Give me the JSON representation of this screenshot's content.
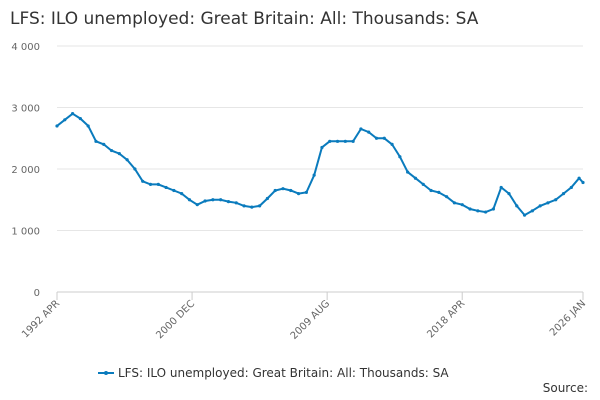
{
  "chart_data": {
    "type": "line",
    "title": "LFS: ILO unemployed: Great Britain: All: Thousands: SA",
    "x": [
      "1992 APR",
      "1992 OCT",
      "1993 APR",
      "1993 OCT",
      "1994 APR",
      "1994 OCT",
      "1995 APR",
      "1995 OCT",
      "1996 APR",
      "1996 OCT",
      "1997 APR",
      "1997 OCT",
      "1998 APR",
      "1998 OCT",
      "1999 APR",
      "1999 OCT",
      "2000 APR",
      "2000 OCT",
      "2001 APR",
      "2001 OCT",
      "2002 APR",
      "2002 OCT",
      "2003 APR",
      "2003 OCT",
      "2004 APR",
      "2004 OCT",
      "2005 APR",
      "2005 OCT",
      "2006 APR",
      "2006 OCT",
      "2007 APR",
      "2007 OCT",
      "2008 APR",
      "2008 OCT",
      "2009 APR",
      "2009 OCT",
      "2010 APR",
      "2010 OCT",
      "2011 APR",
      "2011 OCT",
      "2012 APR",
      "2012 OCT",
      "2013 APR",
      "2013 OCT",
      "2014 APR",
      "2014 OCT",
      "2015 APR",
      "2015 OCT",
      "2016 APR",
      "2016 OCT",
      "2017 APR",
      "2017 OCT",
      "2018 APR",
      "2018 OCT",
      "2019 APR",
      "2019 OCT",
      "2020 APR",
      "2020 OCT",
      "2021 APR",
      "2021 OCT",
      "2022 APR",
      "2022 OCT",
      "2023 APR",
      "2023 OCT",
      "2024 APR",
      "2024 OCT",
      "2025 APR",
      "2025 OCT",
      "2026 JAN"
    ],
    "series": [
      {
        "name": "LFS: ILO unemployed: Great Britain: All: Thousands: SA",
        "color": "#0a7bbd",
        "values": [
          2700,
          2800,
          2900,
          2820,
          2700,
          2450,
          2400,
          2300,
          2250,
          2150,
          2000,
          1800,
          1750,
          1750,
          1700,
          1650,
          1600,
          1500,
          1420,
          1480,
          1500,
          1500,
          1470,
          1450,
          1400,
          1380,
          1400,
          1520,
          1650,
          1680,
          1650,
          1600,
          1620,
          1900,
          2350,
          2450,
          2450,
          2450,
          2450,
          2650,
          2600,
          2500,
          2500,
          2400,
          2200,
          1950,
          1850,
          1750,
          1650,
          1620,
          1550,
          1450,
          1420,
          1350,
          1320,
          1300,
          1350,
          1700,
          1600,
          1400,
          1250,
          1320,
          1400,
          1450,
          1500,
          1600,
          1700,
          1850,
          1780
        ]
      }
    ],
    "xticks": [
      "1992 APR",
      "2000 DEC",
      "2009 AUG",
      "2018 APR",
      "2026 JAN"
    ],
    "ylim": [
      0,
      4000
    ],
    "yticks": [
      0,
      {
        "value": 1000,
        "label": "1 000"
      },
      {
        "value": 2000,
        "label": "2 000"
      },
      {
        "value": 3000,
        "label": "3 000"
      },
      {
        "value": 4000,
        "label": "4 000"
      }
    ],
    "grid": true,
    "legend": "bottom",
    "source": "Source:"
  }
}
